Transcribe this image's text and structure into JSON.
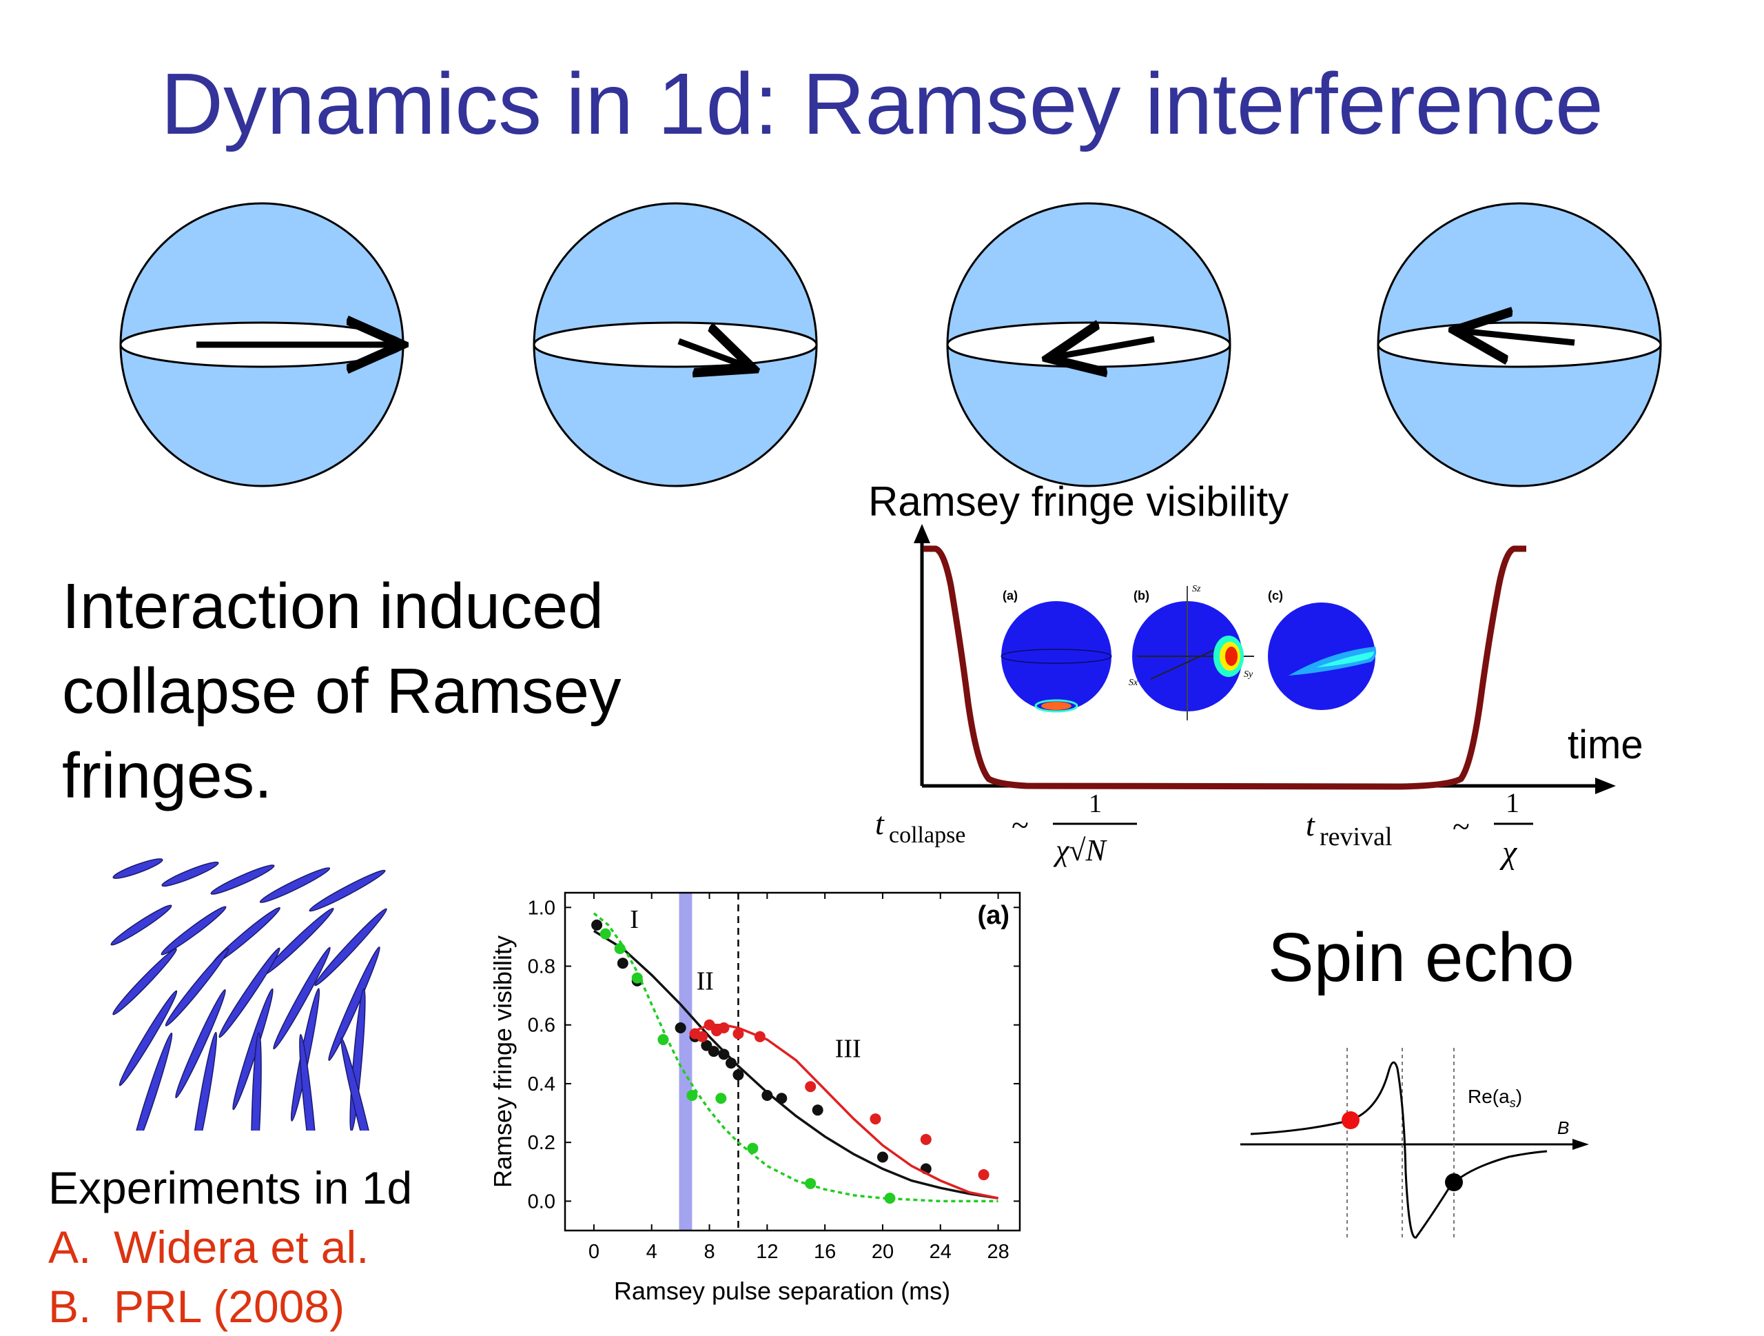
{
  "slide": {
    "title": "Dynamics in 1d: Ramsey interference",
    "bullet": [
      "Interaction induced",
      "collapse of Ramsey",
      "fringes."
    ],
    "spin_echo_title": "Spin echo",
    "experiments_heading": "Experiments in 1d",
    "references": [
      {
        "label": "A.",
        "text": "Widera et al."
      },
      {
        "label": "B.",
        "text": "PRL (2008)"
      }
    ]
  },
  "colors": {
    "title": "#333399",
    "sphere": "#99ccff",
    "curve": "#7a0f0f",
    "ref": "#dd3311",
    "red": "#e02020",
    "green": "#22cc22",
    "black": "#111111",
    "band": "#9999ee"
  },
  "bloch_sequence": {
    "arrow_angles_deg": [
      0,
      -20,
      200,
      165
    ]
  },
  "schematic": {
    "ylabel": "Ramsey fringe visibility",
    "xlabel": "time",
    "insets": [
      "(a)",
      "(b)",
      "(c)"
    ],
    "axis_symbols": [
      "Sz",
      "Sx",
      "Sy"
    ],
    "t_collapse": {
      "t": "t",
      "sub": "collapse",
      "sim": "~",
      "num": "1",
      "den": "χ√N"
    },
    "t_revival": {
      "t": "t",
      "sub": "revival",
      "sim": "~",
      "num": "1",
      "den": "χ"
    }
  },
  "spin_echo_plot": {
    "y_label": "Re(a",
    "y_label_sub": "s",
    "y_label_close": ")",
    "x_label": "B"
  },
  "chart_data": {
    "type": "scatter",
    "title": "",
    "panel_label": "(a)",
    "xlabel": "Ramsey pulse separation (ms)",
    "ylabel": "Ramsey fringe visibility",
    "xlim": [
      -2,
      29.5
    ],
    "ylim": [
      -0.1,
      1.05
    ],
    "xticks": [
      0,
      4,
      8,
      12,
      16,
      20,
      24,
      28
    ],
    "yticks": [
      0.0,
      0.2,
      0.4,
      0.6,
      0.8,
      1.0
    ],
    "ytick_labels": [
      "0.0",
      "0.2",
      "0.4",
      "0.6",
      "0.8",
      "1.0"
    ],
    "regions": [
      "I",
      "II",
      "III"
    ],
    "shaded_band_x": [
      5.9,
      6.8
    ],
    "dashed_line_x": 10,
    "series": [
      {
        "color": "black",
        "points": [
          [
            0.2,
            0.94
          ],
          [
            2,
            0.81
          ],
          [
            3,
            0.75
          ],
          [
            6,
            0.59
          ],
          [
            7,
            0.56
          ],
          [
            7.8,
            0.53
          ],
          [
            8.3,
            0.51
          ],
          [
            9,
            0.5
          ],
          [
            9.5,
            0.47
          ],
          [
            10,
            0.43
          ],
          [
            12,
            0.36
          ],
          [
            13,
            0.35
          ],
          [
            15.5,
            0.31
          ],
          [
            20,
            0.15
          ],
          [
            23,
            0.11
          ]
        ],
        "fit": [
          [
            0,
            0.92
          ],
          [
            2,
            0.86
          ],
          [
            4,
            0.77
          ],
          [
            6,
            0.67
          ],
          [
            8,
            0.56
          ],
          [
            10,
            0.46
          ],
          [
            12,
            0.37
          ],
          [
            14,
            0.29
          ],
          [
            16,
            0.22
          ],
          [
            18,
            0.16
          ],
          [
            20,
            0.11
          ],
          [
            22,
            0.07
          ],
          [
            24,
            0.045
          ],
          [
            26,
            0.025
          ],
          [
            28,
            0.01
          ]
        ]
      },
      {
        "color": "red",
        "points": [
          [
            7,
            0.57
          ],
          [
            7.5,
            0.56
          ],
          [
            8,
            0.6
          ],
          [
            8.5,
            0.58
          ],
          [
            9,
            0.59
          ],
          [
            10,
            0.57
          ],
          [
            11.5,
            0.56
          ],
          [
            15,
            0.39
          ],
          [
            19.5,
            0.28
          ],
          [
            23,
            0.21
          ],
          [
            27,
            0.09
          ]
        ],
        "fit": [
          [
            7,
            0.58
          ],
          [
            8,
            0.6
          ],
          [
            9,
            0.6
          ],
          [
            10,
            0.59
          ],
          [
            11,
            0.57
          ],
          [
            12,
            0.55
          ],
          [
            14,
            0.48
          ],
          [
            16,
            0.38
          ],
          [
            18,
            0.28
          ],
          [
            20,
            0.19
          ],
          [
            22,
            0.12
          ],
          [
            24,
            0.07
          ],
          [
            26,
            0.03
          ],
          [
            28,
            0.01
          ]
        ]
      },
      {
        "color": "green",
        "points": [
          [
            0.8,
            0.91
          ],
          [
            1.8,
            0.86
          ],
          [
            3,
            0.76
          ],
          [
            4.8,
            0.55
          ],
          [
            6.8,
            0.36
          ],
          [
            8.8,
            0.35
          ],
          [
            11,
            0.18
          ],
          [
            15,
            0.06
          ],
          [
            20.5,
            0.01
          ]
        ],
        "fit": [
          [
            0,
            0.98
          ],
          [
            1,
            0.94
          ],
          [
            2,
            0.87
          ],
          [
            3,
            0.78
          ],
          [
            4,
            0.67
          ],
          [
            5,
            0.56
          ],
          [
            6,
            0.46
          ],
          [
            7,
            0.38
          ],
          [
            8,
            0.31
          ],
          [
            9,
            0.25
          ],
          [
            10,
            0.2
          ],
          [
            12,
            0.12
          ],
          [
            14,
            0.07
          ],
          [
            16,
            0.04
          ],
          [
            18,
            0.02
          ],
          [
            20,
            0.01
          ],
          [
            24,
            0.0
          ],
          [
            28,
            0.0
          ]
        ]
      }
    ]
  }
}
